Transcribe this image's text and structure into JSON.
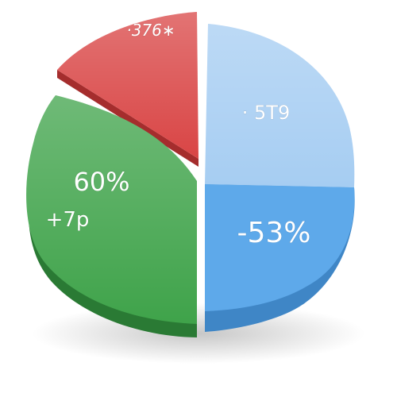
{
  "chart_data": {
    "type": "pie",
    "title": "",
    "slices": [
      {
        "label": "·376∗",
        "value": 12,
        "color": "#d94545",
        "side_color": "#a52d2d",
        "exploded": true
      },
      {
        "label": "· 5T9",
        "value": 20,
        "color": "#a6cdf2",
        "side_color": "#7da6cf",
        "exploded": true
      },
      {
        "label": "-53%",
        "value": 18,
        "color": "#5ea9ea",
        "side_color": "#3f86c6",
        "exploded": true
      },
      {
        "label": "60%",
        "value": 50,
        "color": "#3fa34a",
        "side_color": "#2a7a34",
        "exploded": false,
        "sublabel": "+7p"
      }
    ]
  }
}
